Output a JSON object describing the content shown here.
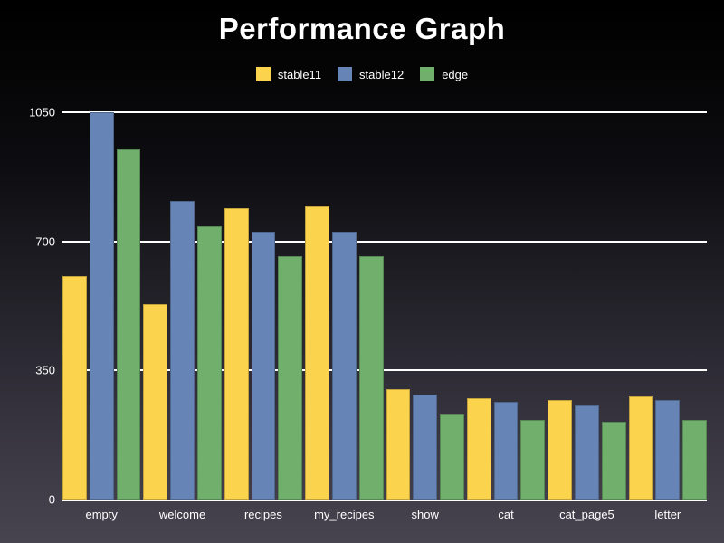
{
  "theme": {
    "background_top": "#000000",
    "background_bottom": "#47444f",
    "text_color": "#ffffff",
    "gridline_color": "#ffffff"
  },
  "chart_data": {
    "type": "bar",
    "title": "Performance Graph",
    "categories": [
      "empty",
      "welcome",
      "recipes",
      "my_recipes",
      "show",
      "cat",
      "cat_page5",
      "letter"
    ],
    "series": [
      {
        "name": "stable11",
        "color": "#fcd34c",
        "values": [
          605,
          530,
          790,
          795,
          300,
          275,
          270,
          280
        ]
      },
      {
        "name": "stable12",
        "color": "#6684b5",
        "values": [
          1050,
          810,
          725,
          725,
          285,
          265,
          255,
          270
        ]
      },
      {
        "name": "edge",
        "color": "#71af6c",
        "values": [
          950,
          740,
          660,
          660,
          230,
          215,
          210,
          215
        ]
      }
    ],
    "xlabel": "",
    "ylabel": "",
    "ylim": [
      0,
      1050
    ],
    "yticks": [
      0,
      350,
      700,
      1050
    ],
    "grid": true,
    "legend_position": "top"
  }
}
